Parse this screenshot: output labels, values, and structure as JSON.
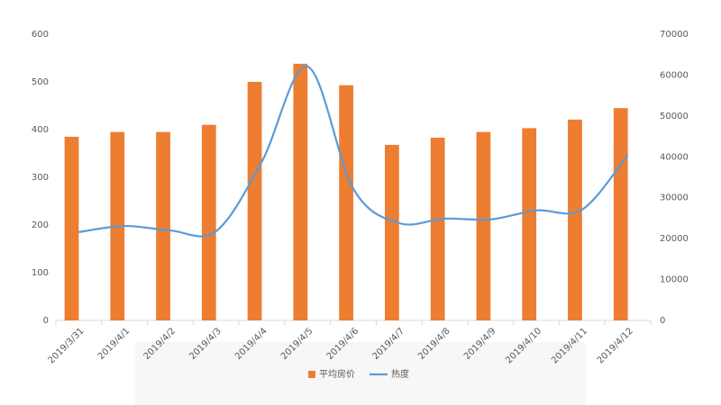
{
  "chart_data": {
    "type": "combo",
    "categories": [
      "2019/3/31",
      "2019/4/1",
      "2019/4/2",
      "2019/4/3",
      "2019/4/4",
      "2019/4/5",
      "2019/4/6",
      "2019/4/7",
      "2019/4/8",
      "2019/4/9",
      "2019/4/10",
      "2019/4/11",
      "2019/4/12"
    ],
    "series": [
      {
        "name": "平均房价",
        "type": "bar",
        "color": "#ED7D31",
        "values": [
          385,
          395,
          395,
          410,
          500,
          538,
          493,
          368,
          383,
          395,
          403,
          421,
          445
        ]
      },
      {
        "name": "热度",
        "type": "line",
        "axis": "y2",
        "color": "#5B9BD5",
        "values": [
          21600,
          23100,
          22000,
          21800,
          38800,
          62100,
          32200,
          23800,
          24900,
          24700,
          26900,
          27100,
          40500
        ]
      }
    ],
    "ylim": [
      0,
      600
    ],
    "yticks": [
      0,
      100,
      200,
      300,
      400,
      500,
      600
    ],
    "y2lim": [
      0,
      70000
    ],
    "y2ticks": [
      0,
      10000,
      20000,
      30000,
      40000,
      50000,
      60000,
      70000
    ],
    "grid": false,
    "legend": "bottom"
  }
}
